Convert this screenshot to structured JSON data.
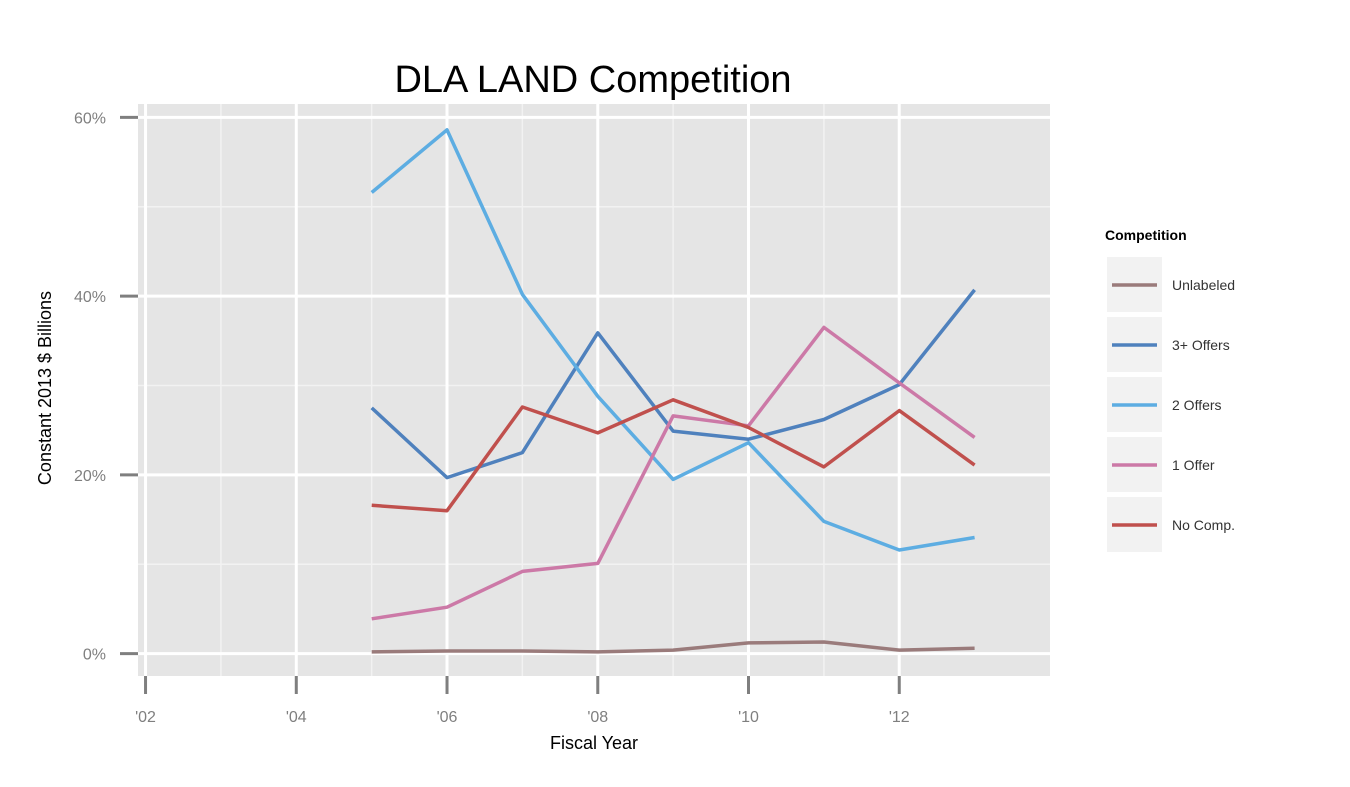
{
  "chart_data": {
    "type": "line",
    "title": "DLA LAND Competition",
    "xlabel": "Fiscal Year",
    "ylabel": "Constant 2013 $ Billions",
    "xlim": [
      2001.9,
      2014.0
    ],
    "ylim": [
      -2.5,
      61.5
    ],
    "x_ticks": [
      {
        "value": 2002,
        "label": "'02"
      },
      {
        "value": 2004,
        "label": "'04"
      },
      {
        "value": 2006,
        "label": "'06"
      },
      {
        "value": 2008,
        "label": "'08"
      },
      {
        "value": 2010,
        "label": "'10"
      },
      {
        "value": 2012,
        "label": "'12"
      }
    ],
    "y_ticks": [
      {
        "value": 0,
        "label": "0%"
      },
      {
        "value": 20,
        "label": "20%"
      },
      {
        "value": 40,
        "label": "40%"
      },
      {
        "value": 60,
        "label": "60%"
      }
    ],
    "grid": true,
    "legend": {
      "title": "Competition",
      "position": "right"
    },
    "x": [
      2005,
      2006,
      2007,
      2008,
      2009,
      2010,
      2011,
      2012,
      2013
    ],
    "series": [
      {
        "name": "Unlabeled",
        "color": "#9a7b7b",
        "values": [
          0.2,
          0.3,
          0.3,
          0.2,
          0.4,
          1.2,
          1.3,
          0.4,
          0.6
        ]
      },
      {
        "name": "3+ Offers",
        "color": "#4f81bd",
        "values": [
          27.5,
          19.7,
          22.5,
          35.9,
          24.9,
          24.0,
          26.2,
          30.1,
          40.7
        ]
      },
      {
        "name": "2 Offers",
        "color": "#5dade2",
        "values": [
          51.6,
          58.6,
          40.2,
          28.8,
          19.5,
          23.6,
          14.8,
          11.6,
          13.0
        ]
      },
      {
        "name": "1 Offer",
        "color": "#cc79a7",
        "values": [
          3.9,
          5.2,
          9.2,
          10.1,
          26.6,
          25.5,
          36.5,
          30.3,
          24.2
        ]
      },
      {
        "name": "No Comp.",
        "color": "#c0504d",
        "values": [
          16.6,
          16.0,
          27.6,
          24.7,
          28.4,
          25.3,
          20.9,
          27.2,
          21.1
        ]
      }
    ]
  }
}
